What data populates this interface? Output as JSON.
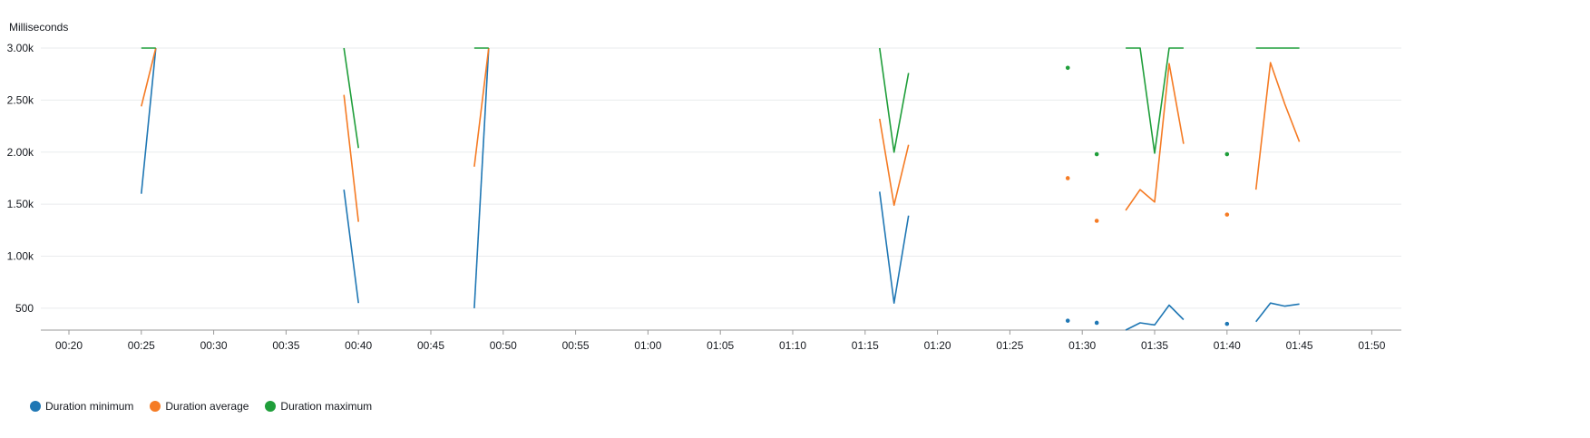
{
  "chart_data": {
    "type": "line",
    "ylabel": "Milliseconds",
    "xlabel": "",
    "grid": true,
    "legend_position": "bottom-left",
    "ylim": [
      290,
      3000
    ],
    "xlim": [
      "00:18",
      "01:51"
    ],
    "y_ticks": [
      "500",
      "1.00k",
      "1.50k",
      "2.00k",
      "2.50k",
      "3.00k"
    ],
    "x_ticks": [
      "00:20",
      "00:25",
      "00:30",
      "00:35",
      "00:40",
      "00:45",
      "00:50",
      "00:55",
      "01:00",
      "01:05",
      "01:10",
      "01:15",
      "01:20",
      "01:25",
      "01:30",
      "01:35",
      "01:40",
      "01:45",
      "01:50"
    ],
    "series": [
      {
        "name": "Duration minimum",
        "color": "#1f77b4",
        "points": [
          [
            "00:25",
            1600
          ],
          [
            "00:26",
            3000
          ],
          null,
          [
            "00:39",
            1640
          ],
          [
            "00:40",
            550
          ],
          null,
          [
            "00:48",
            500
          ],
          [
            "00:49",
            3000
          ],
          null,
          [
            "01:16",
            1620
          ],
          [
            "01:17",
            550
          ],
          [
            "01:18",
            1390
          ],
          null,
          [
            "01:29",
            380
          ],
          null,
          [
            "01:31",
            360
          ],
          null,
          [
            "01:33",
            290
          ],
          [
            "01:34",
            360
          ],
          [
            "01:35",
            340
          ],
          [
            "01:36",
            530
          ],
          [
            "01:37",
            390
          ],
          null,
          [
            "01:40",
            350
          ],
          null,
          [
            "01:42",
            370
          ],
          [
            "01:43",
            550
          ],
          [
            "01:44",
            520
          ],
          [
            "01:45",
            540
          ]
        ]
      },
      {
        "name": "Duration average",
        "color": "#f57b24",
        "points": [
          [
            "00:25",
            2440
          ],
          [
            "00:26",
            3000
          ],
          null,
          [
            "00:39",
            2550
          ],
          [
            "00:40",
            1330
          ],
          null,
          [
            "00:48",
            1860
          ],
          [
            "00:49",
            3000
          ],
          null,
          [
            "01:16",
            2320
          ],
          [
            "01:17",
            1490
          ],
          [
            "01:18",
            2070
          ],
          null,
          [
            "01:29",
            1750
          ],
          null,
          [
            "01:31",
            1340
          ],
          null,
          [
            "01:33",
            1440
          ],
          [
            "01:34",
            1640
          ],
          [
            "01:35",
            1520
          ],
          [
            "01:36",
            2850
          ],
          [
            "01:37",
            2080
          ],
          null,
          [
            "01:40",
            1400
          ],
          null,
          [
            "01:42",
            1640
          ],
          [
            "01:43",
            2860
          ],
          [
            "01:44",
            2460
          ],
          [
            "01:45",
            2100
          ]
        ]
      },
      {
        "name": "Duration maximum",
        "color": "#1f9e3a",
        "points": [
          [
            "00:25",
            3000
          ],
          [
            "00:26",
            3000
          ],
          null,
          [
            "00:39",
            3000
          ],
          [
            "00:40",
            2040
          ],
          null,
          [
            "00:48",
            3000
          ],
          [
            "00:49",
            3000
          ],
          null,
          [
            "01:16",
            3000
          ],
          [
            "01:17",
            2000
          ],
          [
            "01:18",
            2760
          ],
          null,
          [
            "01:29",
            2810
          ],
          null,
          [
            "01:31",
            1980
          ],
          null,
          [
            "01:33",
            3000
          ],
          [
            "01:34",
            3000
          ],
          [
            "01:35",
            1990
          ],
          [
            "01:36",
            3000
          ],
          [
            "01:37",
            3000
          ],
          null,
          [
            "01:40",
            1980
          ],
          null,
          [
            "01:42",
            3000
          ],
          [
            "01:43",
            3000
          ],
          [
            "01:44",
            3000
          ],
          [
            "01:45",
            3000
          ]
        ]
      }
    ]
  }
}
